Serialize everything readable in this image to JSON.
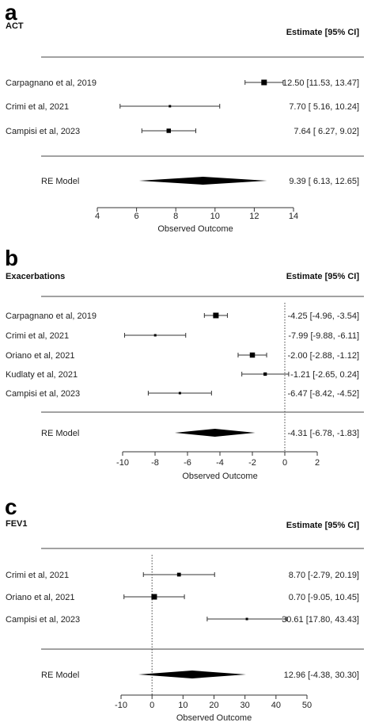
{
  "chart_data": [
    {
      "type": "forest",
      "panel_label": "a",
      "outcome": "ACT",
      "estimate_header": "Estimate [95% CI]",
      "xlabel": "Observed Outcome",
      "xlim": [
        4,
        14
      ],
      "xticks": [
        4,
        6,
        8,
        10,
        12,
        14
      ],
      "reference_line": null,
      "studies": [
        {
          "name": "Carpagnano et al, 2019",
          "estimate": 12.5,
          "lower": 11.53,
          "upper": 13.47,
          "ci_text": "12.50 [11.53, 13.47]",
          "weight": 1.0
        },
        {
          "name": "Crimi et al, 2021",
          "estimate": 7.7,
          "lower": 5.16,
          "upper": 10.24,
          "ci_text": "7.70 [ 5.16, 10.24]",
          "weight": 0.2
        },
        {
          "name": "Campisi et al, 2023",
          "estimate": 7.64,
          "lower": 6.27,
          "upper": 9.02,
          "ci_text": "7.64 [ 6.27,  9.02]",
          "weight": 0.7
        }
      ],
      "summary": {
        "name": "RE Model",
        "estimate": 9.39,
        "lower": 6.13,
        "upper": 12.65,
        "ci_text": "9.39 [ 6.13, 12.65]"
      }
    },
    {
      "type": "forest",
      "panel_label": "b",
      "outcome": "Exacerbations",
      "estimate_header": "Estimate [95% CI]",
      "xlabel": "Observed Outcome",
      "xlim": [
        -10,
        2
      ],
      "xticks": [
        -10,
        -8,
        -6,
        -4,
        -2,
        0,
        2
      ],
      "reference_line": 0,
      "studies": [
        {
          "name": "Carpagnano et al, 2019",
          "estimate": -4.25,
          "lower": -4.96,
          "upper": -3.54,
          "ci_text": "-4.25 [-4.96, -3.54]",
          "weight": 1.0
        },
        {
          "name": "Crimi et al, 2021",
          "estimate": -7.99,
          "lower": -9.88,
          "upper": -6.11,
          "ci_text": "-7.99 [-9.88, -6.11]",
          "weight": 0.2
        },
        {
          "name": "Oriano et al, 2021",
          "estimate": -2.0,
          "lower": -2.88,
          "upper": -1.12,
          "ci_text": "-2.00 [-2.88, -1.12]",
          "weight": 0.9
        },
        {
          "name": "Kudlaty et al, 2021",
          "estimate": -1.21,
          "lower": -2.65,
          "upper": 0.24,
          "ci_text": "-1.21 [-2.65,  0.24]",
          "weight": 0.45
        },
        {
          "name": "Campisi et al, 2023",
          "estimate": -6.47,
          "lower": -8.42,
          "upper": -4.52,
          "ci_text": "-6.47 [-8.42, -4.52]",
          "weight": 0.2
        }
      ],
      "summary": {
        "name": "RE Model",
        "estimate": -4.31,
        "lower": -6.78,
        "upper": -1.83,
        "ci_text": "-4.31 [-6.78, -1.83]"
      }
    },
    {
      "type": "forest",
      "panel_label": "c",
      "outcome": "FEV1",
      "estimate_header": "Estimate [95% CI]",
      "xlabel": "Observed Outcome",
      "xlim": [
        -10,
        50
      ],
      "xticks": [
        -10,
        0,
        10,
        20,
        30,
        40,
        50
      ],
      "reference_line": 0,
      "studies": [
        {
          "name": "Crimi et al, 2021",
          "estimate": 8.7,
          "lower": -2.79,
          "upper": 20.19,
          "ci_text": "8.70 [-2.79, 20.19]",
          "weight": 0.55
        },
        {
          "name": "Oriano et al, 2021",
          "estimate": 0.7,
          "lower": -9.05,
          "upper": 10.45,
          "ci_text": "0.70 [-9.05, 10.45]",
          "weight": 1.0
        },
        {
          "name": "Campisi et al, 2023",
          "estimate": 30.61,
          "lower": 17.8,
          "upper": 43.43,
          "ci_text": "30.61 [17.80, 43.43]",
          "weight": 0.2
        }
      ],
      "summary": {
        "name": "RE Model",
        "estimate": 12.96,
        "lower": -4.38,
        "upper": 30.3,
        "ci_text": "12.96 [-4.38, 30.30]"
      }
    }
  ]
}
